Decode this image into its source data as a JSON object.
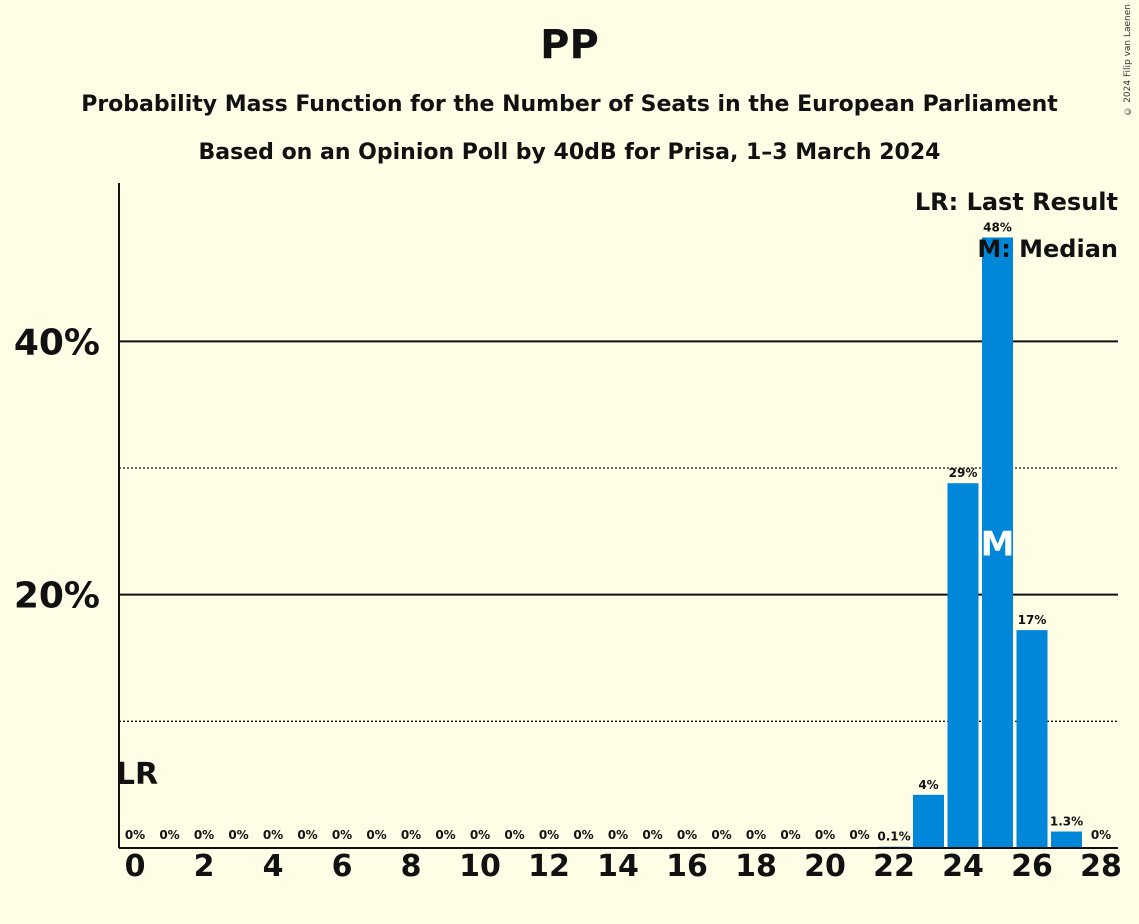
{
  "title": "PP",
  "subtitle1": "Probability Mass Function for the Number of Seats in the European Parliament",
  "subtitle2": "Based on an Opinion Poll by 40dB for Prisa, 1–3 March 2024",
  "copyright": "© 2024 Filip van Laenen",
  "legend": {
    "lr": "LR: Last Result",
    "m": "M: Median"
  },
  "markers": {
    "last_result_label": "LR",
    "median_label": "M"
  },
  "colors": {
    "bar": "#0087DA",
    "background": "#FFFDE6",
    "text": "#111111"
  },
  "chart_data": {
    "type": "bar",
    "title": "PP",
    "xlabel": "",
    "ylabel": "",
    "categories": [
      0,
      1,
      2,
      3,
      4,
      5,
      6,
      7,
      8,
      9,
      10,
      11,
      12,
      13,
      14,
      15,
      16,
      17,
      18,
      19,
      20,
      21,
      22,
      23,
      24,
      25,
      26,
      27,
      28
    ],
    "values": [
      0,
      0,
      0,
      0,
      0,
      0,
      0,
      0,
      0,
      0,
      0,
      0,
      0,
      0,
      0,
      0,
      0,
      0,
      0,
      0,
      0,
      0,
      0.1,
      4.2,
      28.8,
      48.2,
      17.2,
      1.3,
      0
    ],
    "value_labels": [
      "0%",
      "0%",
      "0%",
      "0%",
      "0%",
      "0%",
      "0%",
      "0%",
      "0%",
      "0%",
      "0%",
      "0%",
      "0%",
      "0%",
      "0%",
      "0%",
      "0%",
      "0%",
      "0%",
      "0%",
      "0%",
      "0%",
      "0.1%",
      "4%",
      "29%",
      "48%",
      "17%",
      "1.3%",
      "0%"
    ],
    "x_tick_labels": [
      "0",
      "2",
      "4",
      "6",
      "8",
      "10",
      "12",
      "14",
      "16",
      "18",
      "20",
      "22",
      "24",
      "26",
      "28"
    ],
    "x_ticks": [
      0,
      2,
      4,
      6,
      8,
      10,
      12,
      14,
      16,
      18,
      20,
      22,
      24,
      26,
      28
    ],
    "y_tick_labels": [
      "20%",
      "40%"
    ],
    "y_ticks": [
      20,
      40
    ],
    "y_minor_grid": [
      10,
      30
    ],
    "ylim": [
      0,
      52.5
    ],
    "last_result_seat": 0,
    "median_seat": 25,
    "grid": true,
    "legend_position": "top-right"
  }
}
